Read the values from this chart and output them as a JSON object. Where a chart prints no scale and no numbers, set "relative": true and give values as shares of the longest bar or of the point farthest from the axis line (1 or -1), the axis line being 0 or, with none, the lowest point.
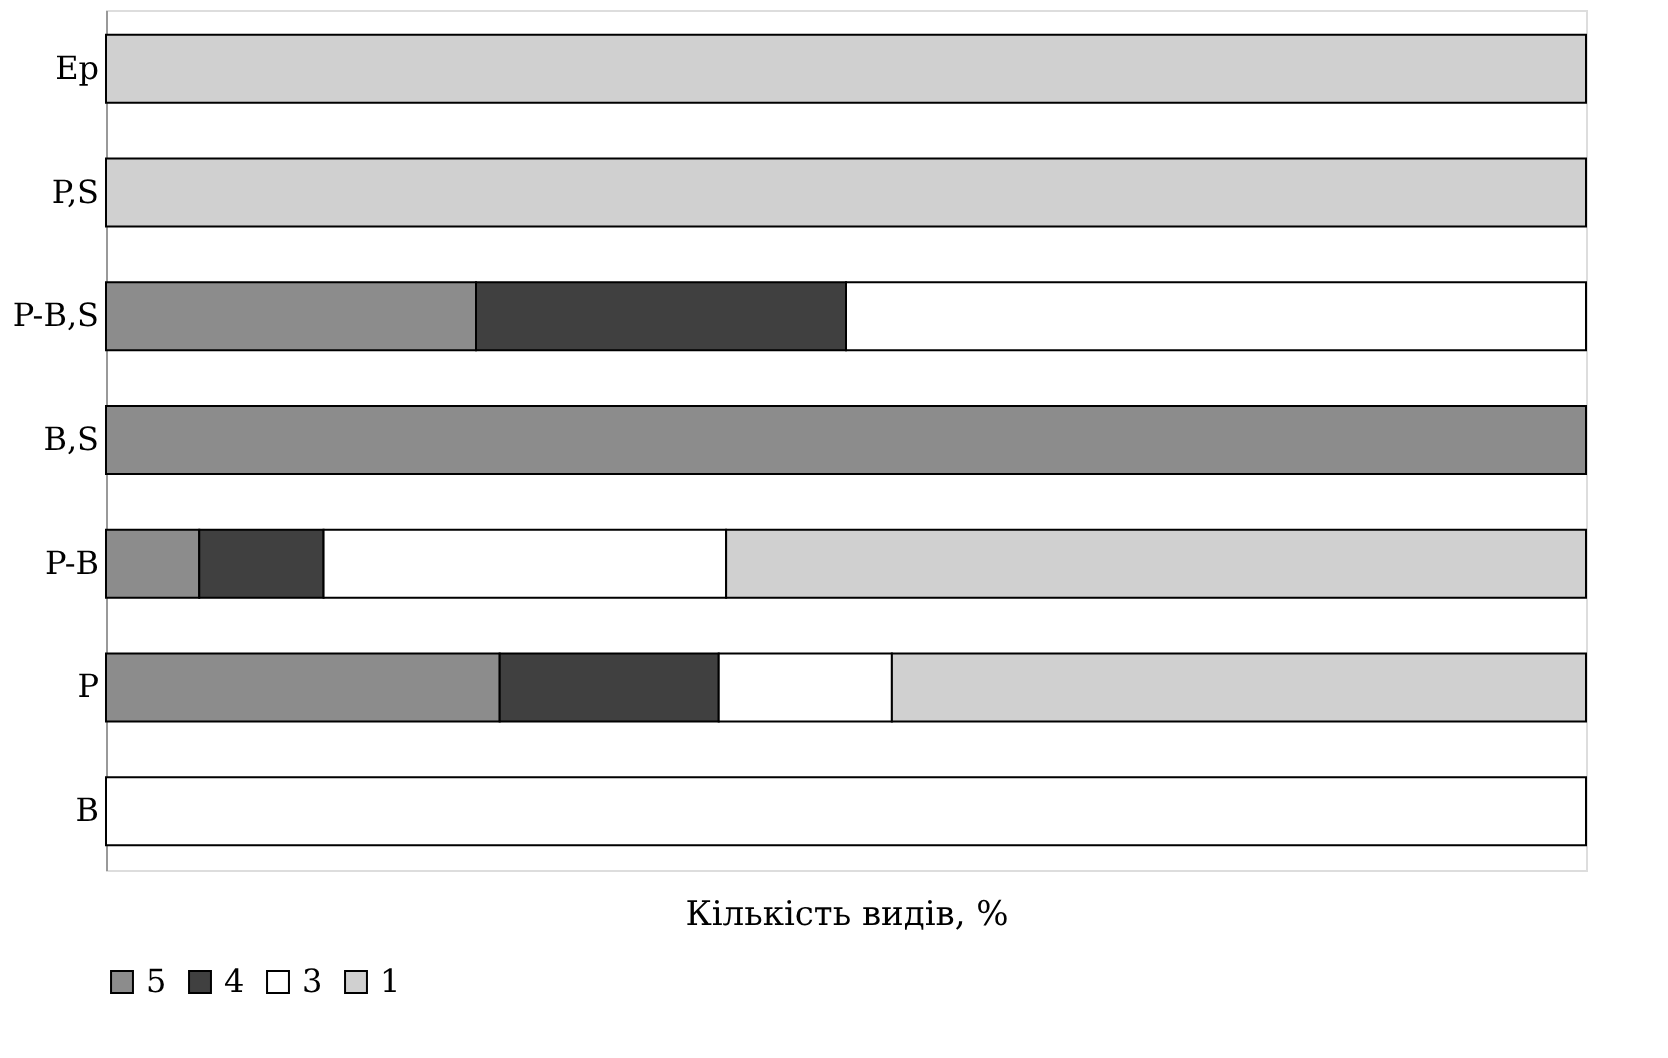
{
  "chart_data": {
    "type": "bar",
    "orientation": "horizontal",
    "stacked": true,
    "relative": true,
    "xlabel": "Кількість видів, %",
    "categories": [
      "Ep",
      "P,S",
      "P-B,S",
      "B,S",
      "P-B",
      "P",
      "B"
    ],
    "legend": "bottom",
    "grid": false,
    "series": [
      {
        "name": "5",
        "color": "#8c8c8c",
        "values": [
          null,
          null,
          0.25,
          1,
          0.063,
          0.266,
          null
        ]
      },
      {
        "name": "4",
        "color": "#404040",
        "values": [
          null,
          null,
          0.25,
          null,
          0.084,
          0.148,
          null
        ]
      },
      {
        "name": "3",
        "color": "#ffffff",
        "values": [
          null,
          null,
          0.5,
          null,
          0.272,
          0.117,
          1
        ]
      },
      {
        "name": "1",
        "color": "#d0d0d0",
        "values": [
          1,
          1,
          null,
          null,
          0.581,
          0.469,
          null
        ]
      }
    ]
  }
}
